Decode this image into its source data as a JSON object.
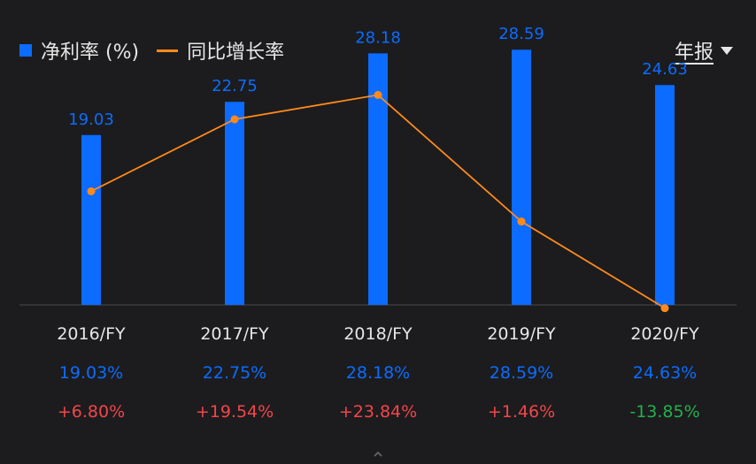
{
  "legend": {
    "bar_label": "净利率 (%)",
    "line_label": "同比增长率"
  },
  "period_selector": {
    "label": "年报"
  },
  "colors": {
    "bar": "#0b6cff",
    "line": "#ff8a1c",
    "positive": "#f2454a",
    "negative": "#22b14c",
    "text": "#e6e6e6"
  },
  "chart_data": {
    "type": "bar",
    "categories": [
      "2016/FY",
      "2017/FY",
      "2018/FY",
      "2019/FY",
      "2020/FY"
    ],
    "series": [
      {
        "name": "净利率 (%)",
        "type": "bar",
        "values": [
          19.03,
          22.75,
          28.18,
          28.59,
          24.63
        ],
        "labels": [
          "19.03",
          "22.75",
          "28.18",
          "28.59",
          "24.63"
        ]
      },
      {
        "name": "同比增长率",
        "type": "line",
        "values": [
          6.8,
          19.54,
          23.84,
          1.46,
          -13.85
        ]
      }
    ],
    "table": {
      "margin_row": [
        "19.03%",
        "22.75%",
        "28.18%",
        "28.59%",
        "24.63%"
      ],
      "growth_row": [
        "+6.80%",
        "+19.54%",
        "+23.84%",
        "+1.46%",
        "-13.85%"
      ]
    },
    "bar_ylim": [
      0,
      30
    ],
    "line_ylim": [
      -25,
      25
    ],
    "grid": false,
    "legend_position": "top-left"
  }
}
